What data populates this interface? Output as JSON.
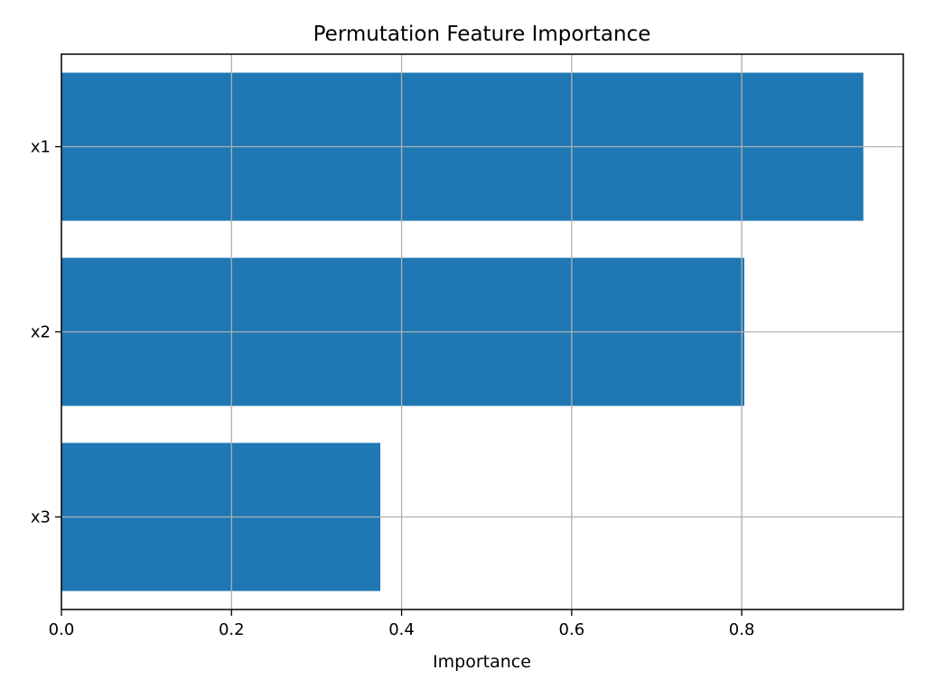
{
  "chart_data": {
    "type": "bar",
    "orientation": "horizontal",
    "title": "Permutation Feature Importance",
    "xlabel": "Importance",
    "ylabel": "",
    "categories": [
      "x1",
      "x2",
      "x3"
    ],
    "values": [
      0.943,
      0.803,
      0.375
    ],
    "xlim": [
      0.0,
      0.99
    ],
    "xticks": [
      0.0,
      0.2,
      0.4,
      0.6,
      0.8
    ],
    "xtick_labels": [
      "0.0",
      "0.2",
      "0.4",
      "0.6",
      "0.8"
    ],
    "grid": true,
    "legend": "none",
    "colors": {
      "bar": "#1f77b4",
      "grid": "#b0b0b0",
      "axis": "#000000"
    }
  }
}
